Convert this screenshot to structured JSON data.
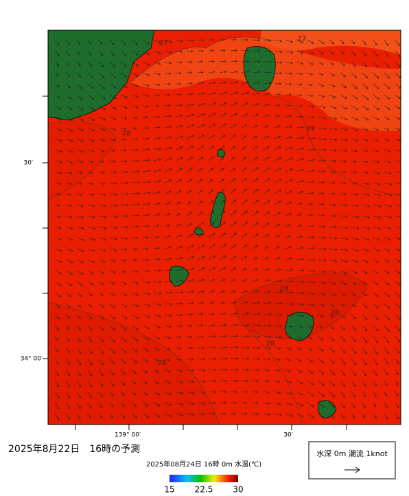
{
  "map": {
    "axis_labels": {
      "left": [
        "30′",
        "34° 00′"
      ],
      "bottom": [
        "139° 00′",
        "30′"
      ]
    },
    "contour_labels": [
      "27",
      "27",
      "27",
      "28",
      "28",
      "28",
      "28",
      "28"
    ],
    "title": "2025年8月22日　16時の予測",
    "subtitle": "2025年08月24日 16時 0m 水温(℃)",
    "colorbar": {
      "ticks": [
        15,
        22.5,
        30
      ]
    },
    "legend": "水深 0m 潮流 1knot"
  }
}
